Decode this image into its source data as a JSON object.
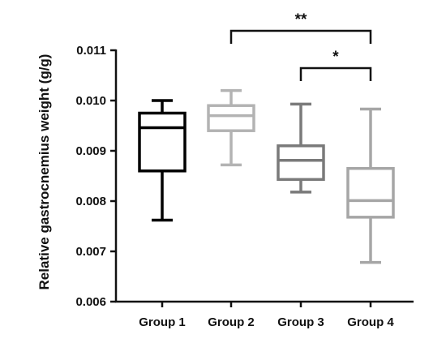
{
  "chart_data": {
    "type": "box",
    "ylabel": "Relative gastrocnemius weight (g/g)",
    "ylim": [
      0.006,
      0.011
    ],
    "yticks": [
      "0.006",
      "0.007",
      "0.008",
      "0.009",
      "0.010",
      "0.011"
    ],
    "ytick_values": [
      0.006,
      0.007,
      0.008,
      0.009,
      0.01,
      0.011
    ],
    "grid": false,
    "categories": [
      "Group 1",
      "Group 2",
      "Group 3",
      "Group 4"
    ],
    "boxes": [
      {
        "min": 0.00762,
        "q1": 0.0086,
        "median": 0.00946,
        "q3": 0.00975,
        "max": 0.01,
        "color": "#000000"
      },
      {
        "min": 0.00872,
        "q1": 0.0094,
        "median": 0.0097,
        "q3": 0.0099,
        "max": 0.0102,
        "color": "#b3b3b3"
      },
      {
        "min": 0.00818,
        "q1": 0.00843,
        "median": 0.00881,
        "q3": 0.0091,
        "max": 0.00993,
        "color": "#7a7a7a"
      },
      {
        "min": 0.00678,
        "q1": 0.00768,
        "median": 0.00801,
        "q3": 0.00865,
        "max": 0.00983,
        "color": "#a6a6a6"
      }
    ],
    "significance": [
      {
        "from": 1,
        "to": 3,
        "label": "**"
      },
      {
        "from": 2,
        "to": 3,
        "label": "*"
      }
    ]
  }
}
